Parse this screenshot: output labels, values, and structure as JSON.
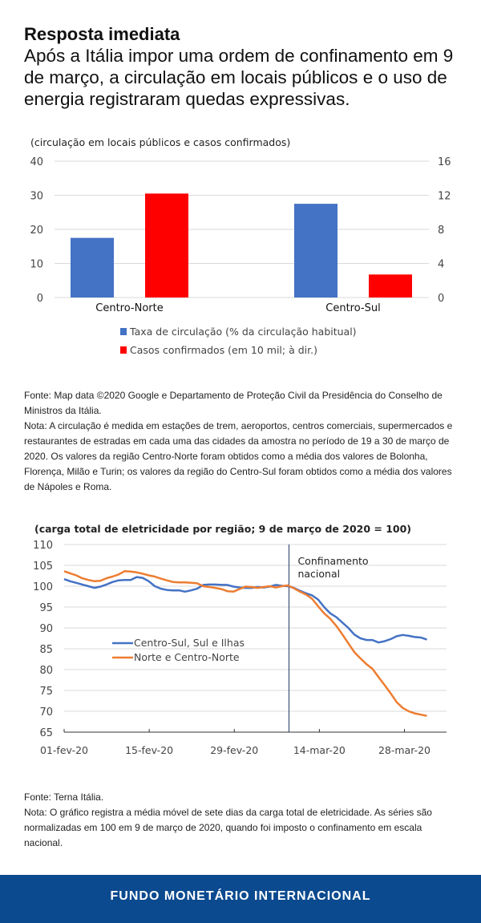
{
  "header": {
    "title": "Resposta imediata",
    "subtitle": "Após a Itália impor uma ordem de confinamento em 9 de março, a circulação em locais públicos e o uso de energia registraram quedas expressivas."
  },
  "notes1": {
    "source": "Fonte: Map data ©2020 Google e Departamento de Proteção Civil da Presidência do Conselho de Ministros da Itália.",
    "note": "Nota: A circulação é medida em estações de trem, aeroportos, centros comerciais, supermercados e restaurantes de estradas em cada uma das cidades da amostra no período de 19 a 30 de março de 2020. Os valores da região Centro-Norte foram obtidos como a média dos valores de Bolonha, Florença, Milão e Turin; os valores da região do Centro-Sul foram obtidos como a média dos valores de Nápoles e Roma."
  },
  "notes2": {
    "source": "Fonte: Terna Itália.",
    "note": "Nota: O gráfico registra a média móvel de sete dias da carga total de eletricidade. As séries são normalizadas em 100 em 9 de março de 2020, quando foi imposto o confinamento em escala nacional."
  },
  "footer": {
    "label": "FUNDO MONETÁRIO INTERNACIONAL"
  },
  "chart_data": [
    {
      "type": "bar",
      "title": "(circulação em locais públicos e casos confirmados)",
      "categories": [
        "Centro-Norte",
        "Centro-Sul"
      ],
      "series": [
        {
          "name": "Taxa de circulação (% da circulação habitual)",
          "values": [
            17.5,
            27.5
          ],
          "axis": "left",
          "color": "#4472c4"
        },
        {
          "name": "Casos confirmados (em 10 mil; à dir.)",
          "values": [
            12.2,
            2.7
          ],
          "axis": "right",
          "color": "#ff0000"
        }
      ],
      "ylim": [
        0,
        40
      ],
      "yticks": [
        "0",
        "10",
        "20",
        "30",
        "40"
      ],
      "y2lim": [
        0,
        16
      ],
      "y2ticks": [
        "0",
        "4",
        "8",
        "12",
        "16"
      ],
      "grid": true,
      "legend": "bottom"
    },
    {
      "type": "line",
      "title": "(carga total de eletricidade por região; 9 de março de 2020 = 100)",
      "x_start": "2020-02-01",
      "xticks": [
        "01-fev-20",
        "15-fev-20",
        "29-fev-20",
        "14-mar-20",
        "28-mar-20"
      ],
      "ylim": [
        65,
        110
      ],
      "yticks": [
        "65",
        "70",
        "75",
        "80",
        "85",
        "90",
        "95",
        "100",
        "105",
        "110"
      ],
      "grid": true,
      "legend": "left-middle",
      "annotation": {
        "date": "2020-03-09",
        "text_line1": "Confinamento",
        "text_line2": "nacional"
      },
      "series": [
        {
          "name": "Centro-Sul, Sul e Ilhas",
          "color": "#4472c4",
          "values": [
            101.7,
            101.2,
            100.8,
            100.4,
            100.0,
            99.6,
            99.9,
            100.4,
            101.0,
            101.4,
            101.5,
            101.5,
            102.2,
            102.0,
            101.2,
            100.0,
            99.4,
            99.1,
            99.0,
            99.0,
            98.7,
            99.0,
            99.4,
            100.3,
            100.4,
            100.4,
            100.3,
            100.3,
            99.9,
            99.7,
            99.6,
            99.6,
            99.8,
            99.7,
            99.9,
            100.3,
            100.1,
            100.0,
            99.6,
            98.9,
            98.3,
            97.8,
            96.8,
            95.0,
            93.5,
            92.6,
            91.3,
            90.0,
            88.4,
            87.5,
            87.1,
            87.1,
            86.5,
            86.8,
            87.3,
            88.0,
            88.3,
            88.1,
            87.8,
            87.7,
            87.2
          ]
        },
        {
          "name": "Norte e Centro-Norte",
          "color": "#ed7d31",
          "values": [
            103.6,
            103.1,
            102.6,
            101.9,
            101.5,
            101.2,
            101.3,
            101.9,
            102.3,
            102.8,
            103.6,
            103.5,
            103.3,
            103.0,
            102.6,
            102.3,
            101.8,
            101.4,
            101.0,
            100.9,
            100.9,
            100.8,
            100.7,
            100.0,
            99.8,
            99.6,
            99.3,
            98.8,
            98.7,
            99.3,
            99.9,
            99.8,
            99.6,
            99.8,
            100.0,
            99.7,
            100.0,
            100.2,
            99.5,
            98.7,
            98.0,
            97.0,
            95.2,
            93.5,
            92.2,
            90.5,
            88.5,
            86.3,
            84.2,
            82.7,
            81.3,
            80.2,
            78.2,
            76.3,
            74.3,
            72.2,
            70.8,
            70.0,
            69.5,
            69.2,
            68.9
          ]
        }
      ]
    }
  ]
}
